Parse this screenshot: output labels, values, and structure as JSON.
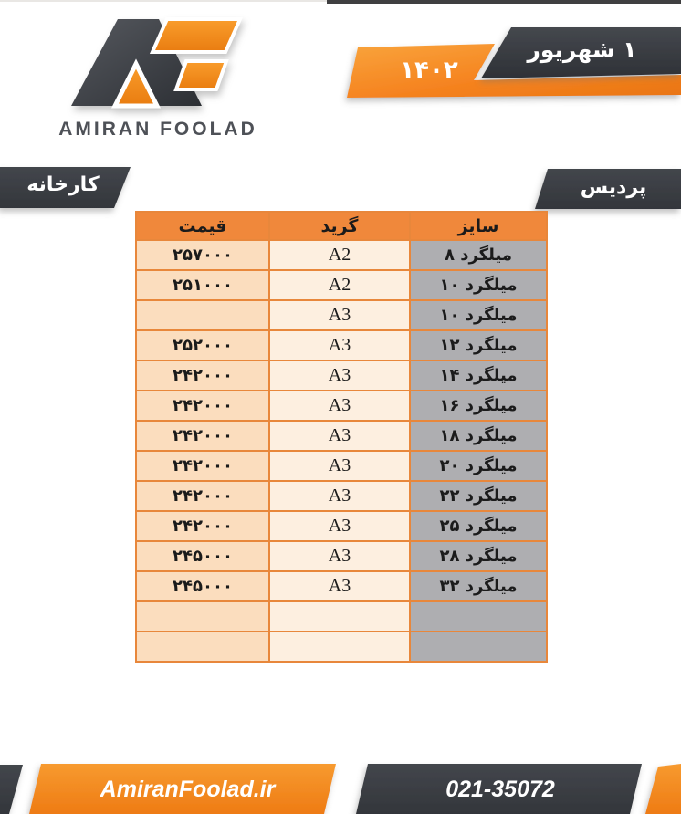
{
  "logo": {
    "brand": "AMIRAN FOOLAD",
    "monogram": "AF",
    "dark_color": "#3E4147",
    "orange_color": "#F5871E"
  },
  "date_banner": {
    "day_month": "۱ شهریور",
    "year": "۱۴۰۲"
  },
  "location_banners": {
    "left": "کارخانه",
    "right": "پردیس"
  },
  "table": {
    "headers": {
      "price": "قیمت",
      "grade": "گرید",
      "size": "سایز"
    },
    "rows": [
      {
        "size": "میلگرد ۸",
        "grade": "A2",
        "price": "۲۵۷۰۰۰"
      },
      {
        "size": "میلگرد ۱۰",
        "grade": "A2",
        "price": "۲۵۱۰۰۰"
      },
      {
        "size": "میلگرد ۱۰",
        "grade": "A3",
        "price": ""
      },
      {
        "size": "میلگرد ۱۲",
        "grade": "A3",
        "price": "۲۵۲۰۰۰"
      },
      {
        "size": "میلگرد ۱۴",
        "grade": "A3",
        "price": "۲۴۲۰۰۰"
      },
      {
        "size": "میلگرد ۱۶",
        "grade": "A3",
        "price": "۲۴۲۰۰۰"
      },
      {
        "size": "میلگرد ۱۸",
        "grade": "A3",
        "price": "۲۴۲۰۰۰"
      },
      {
        "size": "میلگرد ۲۰",
        "grade": "A3",
        "price": "۲۴۲۰۰۰"
      },
      {
        "size": "میلگرد ۲۲",
        "grade": "A3",
        "price": "۲۴۲۰۰۰"
      },
      {
        "size": "میلگرد ۲۵",
        "grade": "A3",
        "price": "۲۴۲۰۰۰"
      },
      {
        "size": "میلگرد ۲۸",
        "grade": "A3",
        "price": "۲۴۵۰۰۰"
      },
      {
        "size": "میلگرد ۳۲",
        "grade": "A3",
        "price": "۲۴۵۰۰۰"
      },
      {
        "size": "",
        "grade": "",
        "price": ""
      },
      {
        "size": "",
        "grade": "",
        "price": ""
      }
    ]
  },
  "footer": {
    "website": "AmiranFoolad.ir",
    "phone": "021-35072"
  },
  "colors": {
    "orange": "#F5821F",
    "orange_light": "#F9A43C",
    "charcoal": "#3A3D43",
    "table_header": "#F0883B",
    "table_border": "#E8873B",
    "price_col_bg": "#FBDDBE",
    "grade_col_bg": "#FDEFE0",
    "size_col_bg": "#AEAEB1"
  }
}
